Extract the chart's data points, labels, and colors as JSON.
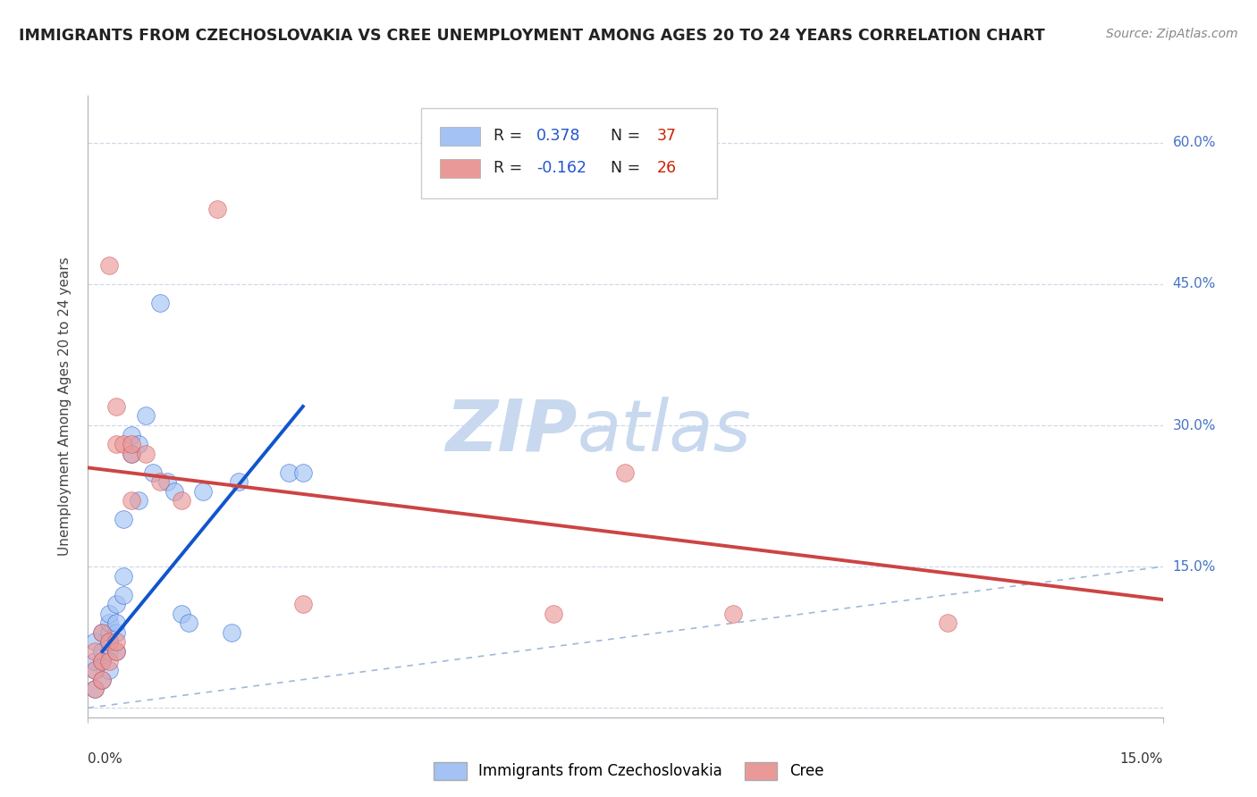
{
  "title": "IMMIGRANTS FROM CZECHOSLOVAKIA VS CREE UNEMPLOYMENT AMONG AGES 20 TO 24 YEARS CORRELATION CHART",
  "source": "Source: ZipAtlas.com",
  "ylabel": "Unemployment Among Ages 20 to 24 years",
  "x_range": [
    0.0,
    0.15
  ],
  "y_range": [
    -0.01,
    0.65
  ],
  "y_ticks": [
    0.0,
    0.15,
    0.3,
    0.45,
    0.6
  ],
  "y_tick_labels": [
    "",
    "15.0%",
    "30.0%",
    "45.0%",
    "60.0%"
  ],
  "x_tick_left": "0.0%",
  "x_tick_right": "15.0%",
  "blue_R": "0.378",
  "blue_N": "37",
  "pink_R": "-0.162",
  "pink_N": "26",
  "blue_color": "#a4c2f4",
  "pink_color": "#ea9999",
  "blue_line_color": "#1155cc",
  "pink_line_color": "#cc4444",
  "ref_line_color": "#a0b8d8",
  "grid_line_color": "#d0d8e8",
  "watermark_zip": "ZIP",
  "watermark_atlas": "atlas",
  "watermark_color": "#c8d8ee",
  "legend_label_blue": "Immigrants from Czechoslovakia",
  "legend_label_pink": "Cree",
  "blue_scatter_x": [
    0.001,
    0.001,
    0.001,
    0.001,
    0.002,
    0.002,
    0.002,
    0.002,
    0.003,
    0.003,
    0.003,
    0.003,
    0.003,
    0.003,
    0.004,
    0.004,
    0.004,
    0.004,
    0.005,
    0.005,
    0.005,
    0.006,
    0.006,
    0.007,
    0.007,
    0.008,
    0.009,
    0.01,
    0.011,
    0.012,
    0.013,
    0.014,
    0.016,
    0.02,
    0.021,
    0.028,
    0.03
  ],
  "blue_scatter_y": [
    0.02,
    0.04,
    0.05,
    0.07,
    0.03,
    0.05,
    0.06,
    0.08,
    0.04,
    0.06,
    0.07,
    0.08,
    0.09,
    0.1,
    0.06,
    0.08,
    0.09,
    0.11,
    0.12,
    0.14,
    0.2,
    0.27,
    0.29,
    0.22,
    0.28,
    0.31,
    0.25,
    0.43,
    0.24,
    0.23,
    0.1,
    0.09,
    0.23,
    0.08,
    0.24,
    0.25,
    0.25
  ],
  "pink_scatter_x": [
    0.001,
    0.001,
    0.001,
    0.002,
    0.002,
    0.002,
    0.003,
    0.003,
    0.003,
    0.004,
    0.004,
    0.004,
    0.004,
    0.005,
    0.006,
    0.006,
    0.006,
    0.008,
    0.01,
    0.013,
    0.018,
    0.03,
    0.065,
    0.075,
    0.09,
    0.12
  ],
  "pink_scatter_y": [
    0.02,
    0.04,
    0.06,
    0.03,
    0.05,
    0.08,
    0.05,
    0.07,
    0.47,
    0.06,
    0.07,
    0.28,
    0.32,
    0.28,
    0.22,
    0.27,
    0.28,
    0.27,
    0.24,
    0.22,
    0.53,
    0.11,
    0.1,
    0.25,
    0.1,
    0.09
  ],
  "blue_trend_x0": 0.002,
  "blue_trend_x1": 0.03,
  "blue_trend_y0": 0.06,
  "blue_trend_y1": 0.32,
  "pink_trend_x0": 0.0,
  "pink_trend_x1": 0.15,
  "pink_trend_y0": 0.255,
  "pink_trend_y1": 0.115
}
